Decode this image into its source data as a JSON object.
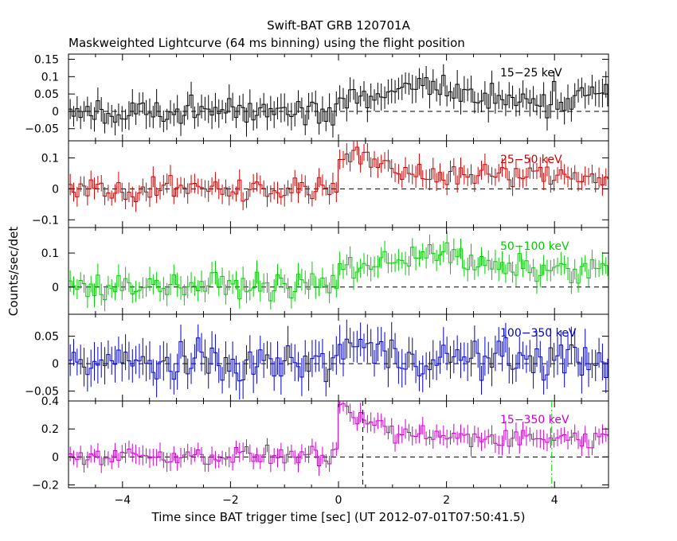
{
  "title": "Swift-BAT GRB 120701A",
  "subtitle": "Maskweighted Lightcurve (64 ms binning) using the flight position",
  "colors": {
    "frame": "#000000",
    "band_15_25": "#000000",
    "band_25_50": "#cc0000",
    "band_50_100": "#00cc00",
    "band_100_350": "#0000cc",
    "band_15_350": "#cc00cc",
    "marker_dashed": "#000000",
    "marker_dashdot": "#00cc00"
  },
  "chart_data": {
    "type": "line",
    "step_style": "histogram with error bars",
    "bin_width": 0.064,
    "xlabel": "Time since BAT trigger time [sec] (UT 2012-07-01T07:50:41.5)",
    "ylabel": "Counts/sec/det",
    "xlim": [
      -5,
      5
    ],
    "x_ticks": [
      -4,
      -2,
      0,
      2,
      4
    ],
    "x_tick_labels": [
      "−4",
      "−2",
      "0",
      "2",
      "4"
    ],
    "vertical_markers": [
      {
        "x": 0.45,
        "style": "dashed",
        "color": "#000000"
      },
      {
        "x": 3.95,
        "style": "dash-dot",
        "color": "#00cc00"
      }
    ],
    "panels": [
      {
        "label": "15−25 keV",
        "color": "#000000",
        "ylim": [
          -0.085,
          0.165
        ],
        "y_ticks": [
          -0.05,
          0,
          0.05,
          0.1,
          0.15
        ],
        "y_tick_labels": [
          "−0.05",
          "0",
          "0.05",
          "0.1",
          "0.15"
        ],
        "pre_level": 0.0,
        "post_level": 0.04,
        "peak_time": 1.7,
        "peak_extra": 0.03,
        "noise": 0.03,
        "error": 0.035
      },
      {
        "label": "25−50 keV",
        "color": "#cc0000",
        "ylim": [
          -0.125,
          0.155
        ],
        "y_ticks": [
          -0.1,
          0,
          0.1
        ],
        "y_tick_labels": [
          "−0.1",
          "0",
          "0.1"
        ],
        "pre_level": 0.0,
        "post_level": 0.05,
        "peak_time": 0.2,
        "peak_extra": 0.05,
        "noise": 0.025,
        "error": 0.03
      },
      {
        "label": "50−100 keV",
        "color": "#00cc00",
        "ylim": [
          -0.08,
          0.175
        ],
        "y_ticks": [
          0,
          0.1
        ],
        "y_tick_labels": [
          "0",
          "0.1"
        ],
        "pre_level": 0.005,
        "post_level": 0.06,
        "peak_time": 1.7,
        "peak_extra": 0.05,
        "noise": 0.025,
        "error": 0.03
      },
      {
        "label": "100−350 keV",
        "color": "#0000cc",
        "ylim": [
          -0.068,
          0.09
        ],
        "y_ticks": [
          -0.05,
          0,
          0.05
        ],
        "y_tick_labels": [
          "−0.05",
          "0",
          "0.05"
        ],
        "pre_level": 0.0,
        "post_level": 0.01,
        "peak_time": 0.0,
        "peak_extra": 0.03,
        "noise": 0.025,
        "error": 0.03
      },
      {
        "label": "15−350 keV",
        "color": "#cc00cc",
        "ylim": [
          -0.22,
          0.4
        ],
        "y_ticks": [
          -0.2,
          0,
          0.2,
          0.4
        ],
        "y_tick_labels": [
          "−0.2",
          "0",
          "0.2",
          "0.4"
        ],
        "pre_level": 0.01,
        "post_level": 0.16,
        "peak_time": 0.05,
        "peak_extra": 0.15,
        "noise": 0.05,
        "error": 0.06
      }
    ]
  }
}
